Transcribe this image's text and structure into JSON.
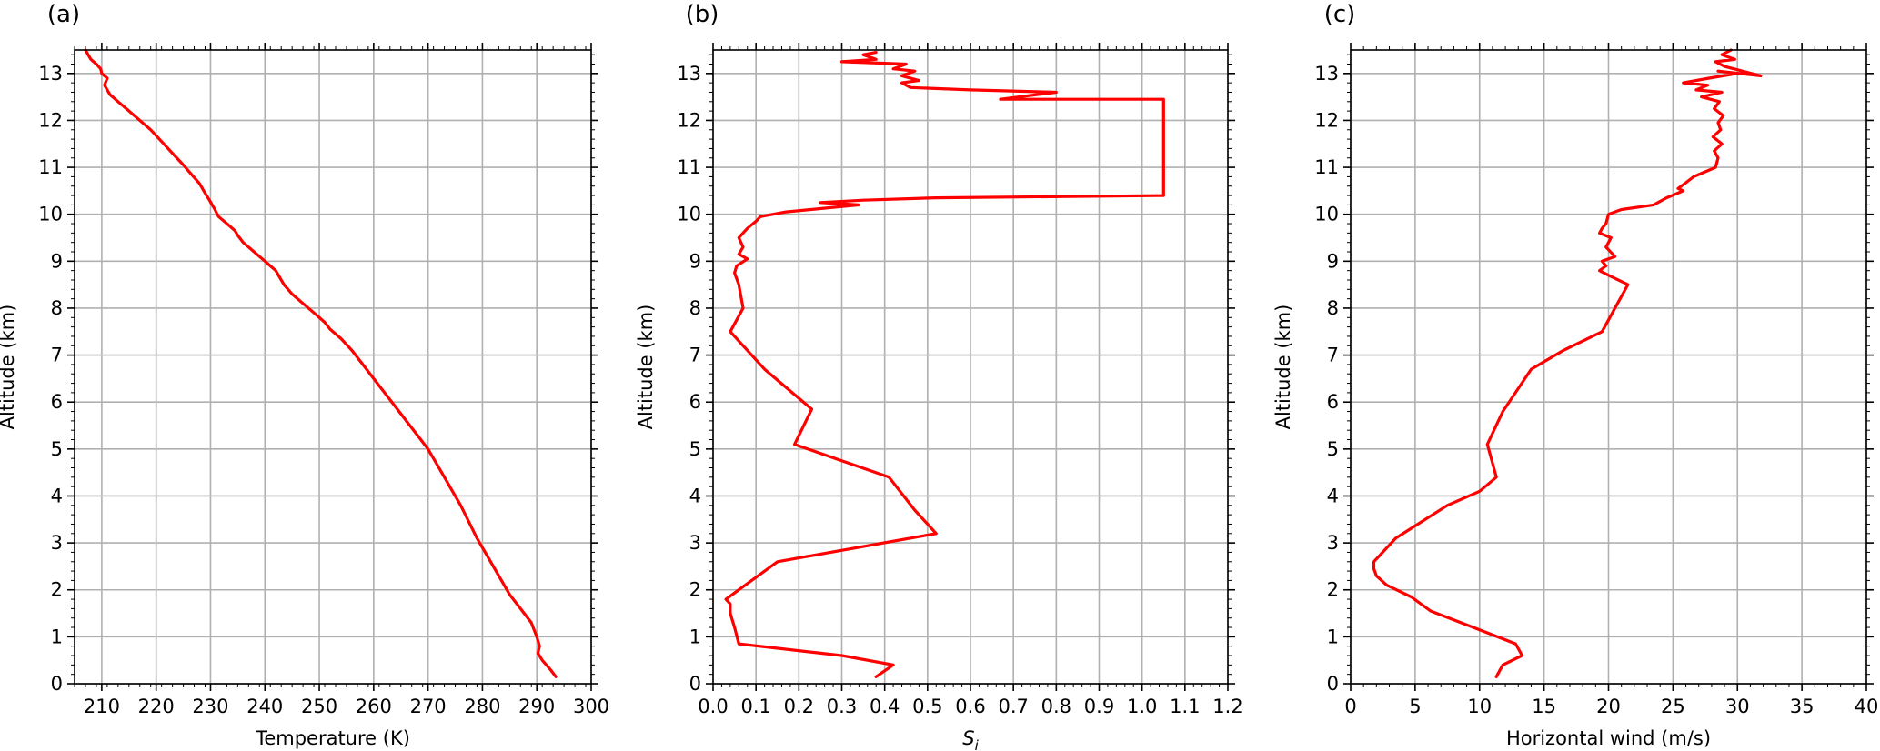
{
  "chart_data": [
    {
      "type": "line",
      "title": "(a)",
      "xlabel": "Temperature (K)",
      "ylabel": "Altitude (km)",
      "xlim": [
        205,
        300
      ],
      "ylim": [
        0,
        13.5
      ],
      "xticks": [
        "210",
        "220",
        "230",
        "240",
        "250",
        "260",
        "270",
        "280",
        "290",
        "300"
      ],
      "xtick_values": [
        210,
        220,
        230,
        240,
        250,
        260,
        270,
        280,
        290,
        300
      ],
      "yticks": [
        "0",
        "1",
        "2",
        "3",
        "4",
        "5",
        "6",
        "7",
        "8",
        "9",
        "10",
        "11",
        "12",
        "13"
      ],
      "ytick_values": [
        0,
        1,
        2,
        3,
        4,
        5,
        6,
        7,
        8,
        9,
        10,
        11,
        12,
        13
      ],
      "grid": true,
      "series": [
        {
          "color": "#ff0000",
          "x": [
            293.5,
            292.5,
            291,
            290.2,
            290.5,
            290,
            289,
            287,
            285,
            283,
            281,
            279,
            277.5,
            276,
            274.5,
            273,
            271.5,
            270,
            268,
            266,
            264,
            262,
            260,
            258,
            256,
            254,
            252,
            251,
            249,
            247,
            245,
            243.5,
            242.5,
            242,
            241.5,
            241,
            240,
            239,
            238,
            237,
            236,
            235,
            234.5,
            233.5,
            232.5,
            231.5,
            231,
            230.8,
            230.3,
            229.8,
            229,
            228,
            226.5,
            225,
            223,
            221,
            219,
            217,
            215,
            213,
            211.5,
            211,
            210.5,
            211,
            210,
            209.8,
            209,
            208,
            207.5,
            207
          ],
          "y": [
            0.15,
            0.3,
            0.5,
            0.65,
            0.8,
            1.0,
            1.3,
            1.6,
            1.9,
            2.3,
            2.7,
            3.1,
            3.45,
            3.8,
            4.1,
            4.4,
            4.7,
            5.0,
            5.3,
            5.6,
            5.9,
            6.2,
            6.5,
            6.8,
            7.1,
            7.35,
            7.55,
            7.7,
            7.9,
            8.1,
            8.3,
            8.5,
            8.7,
            8.8,
            8.85,
            8.9,
            9.0,
            9.1,
            9.2,
            9.3,
            9.4,
            9.55,
            9.65,
            9.75,
            9.85,
            9.95,
            10.05,
            10.1,
            10.2,
            10.3,
            10.45,
            10.65,
            10.85,
            11.05,
            11.3,
            11.55,
            11.8,
            12.0,
            12.2,
            12.4,
            12.55,
            12.65,
            12.75,
            12.9,
            13.0,
            13.1,
            13.2,
            13.3,
            13.4,
            13.5
          ]
        }
      ]
    },
    {
      "type": "line",
      "title": "(b)",
      "xlabel": "Si",
      "xlabel_main": "S",
      "xlabel_sub": "i",
      "ylabel": "Altitude (km)",
      "xlim": [
        0,
        1.2
      ],
      "ylim": [
        0,
        13.5
      ],
      "xticks": [
        "0.0",
        "0.1",
        "0.2",
        "0.3",
        "0.4",
        "0.5",
        "0.6",
        "0.7",
        "0.8",
        "0.9",
        "1.0",
        "1.1",
        "1.2"
      ],
      "xtick_values": [
        0,
        0.1,
        0.2,
        0.3,
        0.4,
        0.5,
        0.6,
        0.7,
        0.8,
        0.9,
        1.0,
        1.1,
        1.2
      ],
      "yticks": [
        "0",
        "1",
        "2",
        "3",
        "4",
        "5",
        "6",
        "7",
        "8",
        "9",
        "10",
        "11",
        "12",
        "13"
      ],
      "ytick_values": [
        0,
        1,
        2,
        3,
        4,
        5,
        6,
        7,
        8,
        9,
        10,
        11,
        12,
        13
      ],
      "grid": true,
      "series": [
        {
          "color": "#ff0000",
          "x": [
            0.38,
            0.42,
            0.3,
            0.06,
            0.05,
            0.04,
            0.04,
            0.03,
            0.06,
            0.15,
            0.52,
            0.47,
            0.41,
            0.19,
            0.23,
            0.12,
            0.04,
            0.07,
            0.06,
            0.05,
            0.055,
            0.08,
            0.06,
            0.07,
            0.06,
            0.08,
            0.1,
            0.11,
            0.17,
            0.34,
            0.25,
            0.35,
            0.52,
            1.05,
            1.05,
            0.67,
            0.8,
            0.6,
            0.46,
            0.44,
            0.48,
            0.44,
            0.47,
            0.42,
            0.45,
            0.3,
            0.38,
            0.35,
            0.38
          ],
          "y": [
            0.15,
            0.4,
            0.6,
            0.85,
            1.2,
            1.5,
            1.7,
            1.8,
            2.0,
            2.6,
            3.2,
            3.7,
            4.4,
            5.1,
            5.85,
            6.7,
            7.5,
            8.0,
            8.5,
            8.75,
            8.9,
            9.05,
            9.15,
            9.3,
            9.5,
            9.7,
            9.85,
            9.95,
            10.05,
            10.2,
            10.25,
            10.3,
            10.35,
            10.4,
            12.45,
            12.45,
            12.6,
            12.65,
            12.7,
            12.8,
            12.85,
            12.95,
            13.05,
            13.1,
            13.2,
            13.25,
            13.3,
            13.4,
            13.45
          ]
        }
      ]
    },
    {
      "type": "line",
      "title": "(c)",
      "xlabel": "Horizontal wind (m/s)",
      "ylabel": "Altitude (km)",
      "xlim": [
        0,
        40
      ],
      "ylim": [
        0,
        13.5
      ],
      "xticks": [
        "0",
        "5",
        "10",
        "15",
        "20",
        "25",
        "30",
        "35",
        "40"
      ],
      "xtick_values": [
        0,
        5,
        10,
        15,
        20,
        25,
        30,
        35,
        40
      ],
      "yticks": [
        "0",
        "1",
        "2",
        "3",
        "4",
        "5",
        "6",
        "7",
        "8",
        "9",
        "10",
        "11",
        "12",
        "13"
      ],
      "ytick_values": [
        0,
        1,
        2,
        3,
        4,
        5,
        6,
        7,
        8,
        9,
        10,
        11,
        12,
        13
      ],
      "grid": true,
      "series": [
        {
          "color": "#ff0000",
          "x": [
            11.3,
            11.8,
            13.3,
            12.8,
            9.5,
            6.2,
            4.7,
            2.8,
            2.0,
            1.8,
            1.8,
            3.5,
            7.5,
            10.0,
            11.3,
            10.6,
            11.8,
            14.0,
            16.5,
            19.5,
            21.5,
            20.0,
            19.3,
            19.8,
            19.5,
            20.5,
            19.8,
            20.2,
            19.3,
            19.5,
            19.8,
            20.0,
            21.0,
            23.5,
            24.5,
            25.8,
            25.4,
            25.9,
            26.6,
            28.3,
            28.5,
            28.2,
            28.8,
            28.1,
            28.7,
            28.5,
            28.9,
            28.2,
            28.6,
            27.2,
            28.8,
            26.8,
            27.7,
            25.8,
            27.8,
            30.0,
            28.5,
            31.8,
            29.0,
            28.3,
            29.8,
            28.8,
            29.5
          ],
          "y": [
            0.15,
            0.4,
            0.6,
            0.85,
            1.2,
            1.55,
            1.85,
            2.1,
            2.3,
            2.45,
            2.6,
            3.1,
            3.8,
            4.1,
            4.4,
            5.1,
            5.8,
            6.7,
            7.1,
            7.5,
            8.5,
            8.7,
            8.8,
            8.9,
            9.0,
            9.1,
            9.3,
            9.5,
            9.6,
            9.7,
            9.8,
            10.0,
            10.1,
            10.2,
            10.35,
            10.5,
            10.55,
            10.65,
            10.8,
            11.0,
            11.2,
            11.35,
            11.5,
            11.65,
            11.8,
            11.95,
            12.1,
            12.25,
            12.4,
            12.5,
            12.6,
            12.65,
            12.75,
            12.8,
            12.9,
            13.0,
            13.05,
            12.95,
            13.15,
            13.25,
            13.3,
            13.4,
            13.5
          ]
        }
      ]
    }
  ]
}
